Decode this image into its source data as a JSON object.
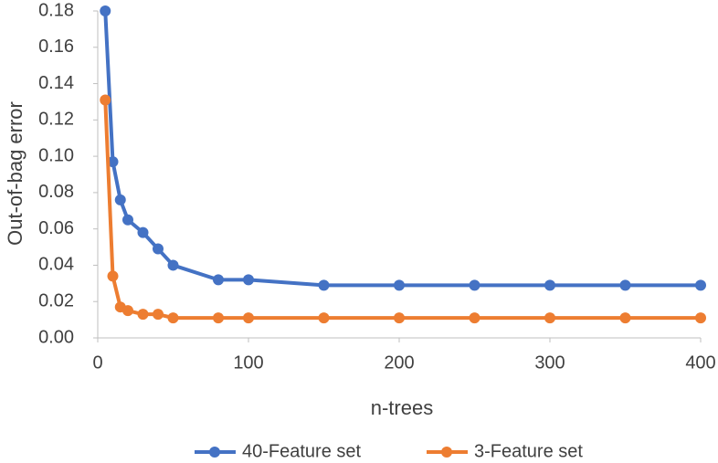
{
  "chart_data": {
    "type": "line",
    "x_label": "n-trees",
    "y_label": "Out-of-bag error",
    "x": [
      5,
      10,
      15,
      20,
      30,
      40,
      50,
      80,
      100,
      150,
      200,
      250,
      300,
      350,
      400
    ],
    "series": [
      {
        "name": "40-Feature set",
        "color": "#4472c4",
        "values": [
          0.18,
          0.097,
          0.076,
          0.065,
          0.058,
          0.049,
          0.04,
          0.032,
          0.032,
          0.029,
          0.029,
          0.029,
          0.029,
          0.029,
          0.029
        ]
      },
      {
        "name": "3-Feature set",
        "color": "#ed7d31",
        "values": [
          0.131,
          0.034,
          0.017,
          0.015,
          0.013,
          0.013,
          0.011,
          0.011,
          0.011,
          0.011,
          0.011,
          0.011,
          0.011,
          0.011,
          0.011
        ]
      }
    ],
    "xlim": [
      0,
      400
    ],
    "xticks": [
      0,
      100,
      200,
      300,
      400
    ],
    "ylim": [
      0,
      0.18
    ],
    "yticks": [
      {
        "value": 0,
        "label": "0.00"
      },
      {
        "value": 0.02,
        "label": "0.02"
      },
      {
        "value": 0.04,
        "label": "0.04"
      },
      {
        "value": 0.06,
        "label": "0.06"
      },
      {
        "value": 0.08,
        "label": "0.08"
      },
      {
        "value": 0.1,
        "label": "0.10"
      },
      {
        "value": 0.12,
        "label": "0.12"
      },
      {
        "value": 0.14,
        "label": "0.14"
      },
      {
        "value": 0.16,
        "label": "0.16"
      },
      {
        "value": 0.18,
        "label": "0.18"
      }
    ],
    "grid": false,
    "legend": "bottom"
  }
}
